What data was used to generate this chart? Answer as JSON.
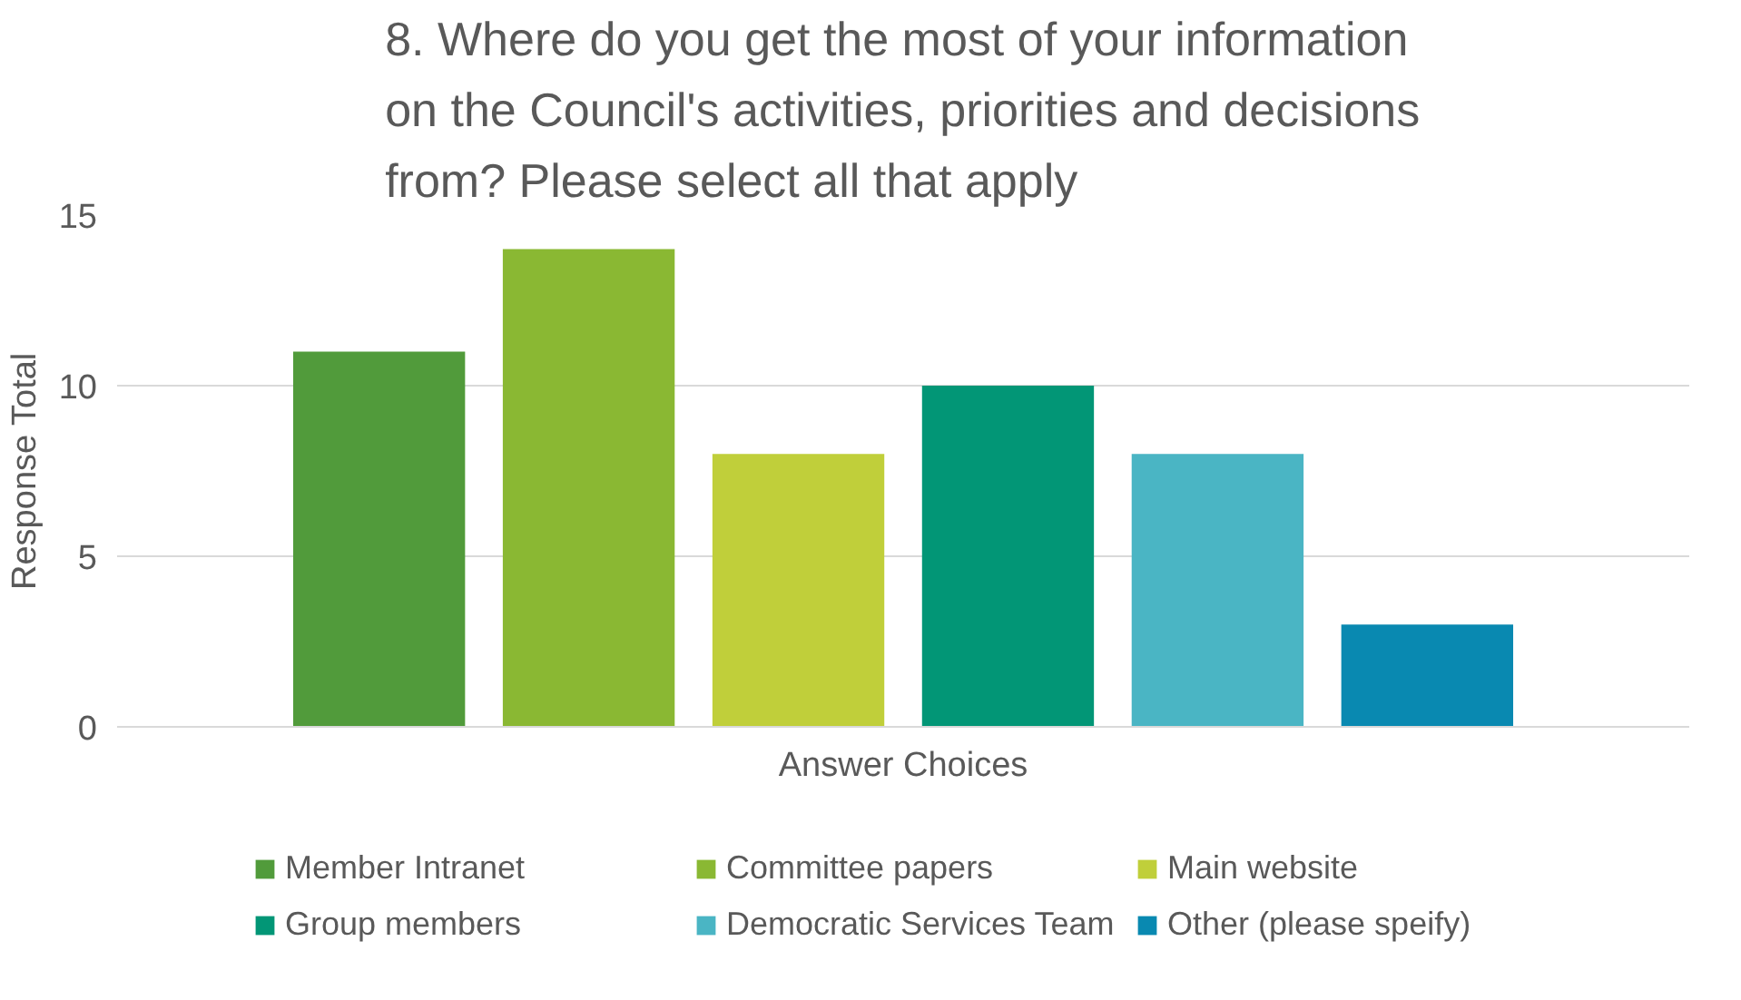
{
  "chart_data": {
    "type": "bar",
    "title": "8. Where do  you get the most of your information\non the Council's activities, priorities and decisions\nfrom?  Please select all that apply",
    "ylabel": "Response Total",
    "categories": [
      "Answer Choices"
    ],
    "series": [
      {
        "name": "Member Intranet",
        "color": "#519b3b",
        "values": [
          11
        ]
      },
      {
        "name": "Committee papers",
        "color": "#8ab833",
        "values": [
          14
        ]
      },
      {
        "name": "Main website",
        "color": "#c0cf3a",
        "values": [
          8
        ]
      },
      {
        "name": "Group members",
        "color": "#029676",
        "values": [
          10
        ]
      },
      {
        "name": "Democratic Services Team",
        "color": "#4ab5c4",
        "values": [
          8
        ]
      },
      {
        "name": "Other (please speify)",
        "color": "#0989b1",
        "values": [
          3
        ]
      }
    ],
    "ylim": [
      0,
      15
    ],
    "yticks": [
      0,
      5,
      10,
      15
    ],
    "grid": "y",
    "legend": "bottom"
  }
}
